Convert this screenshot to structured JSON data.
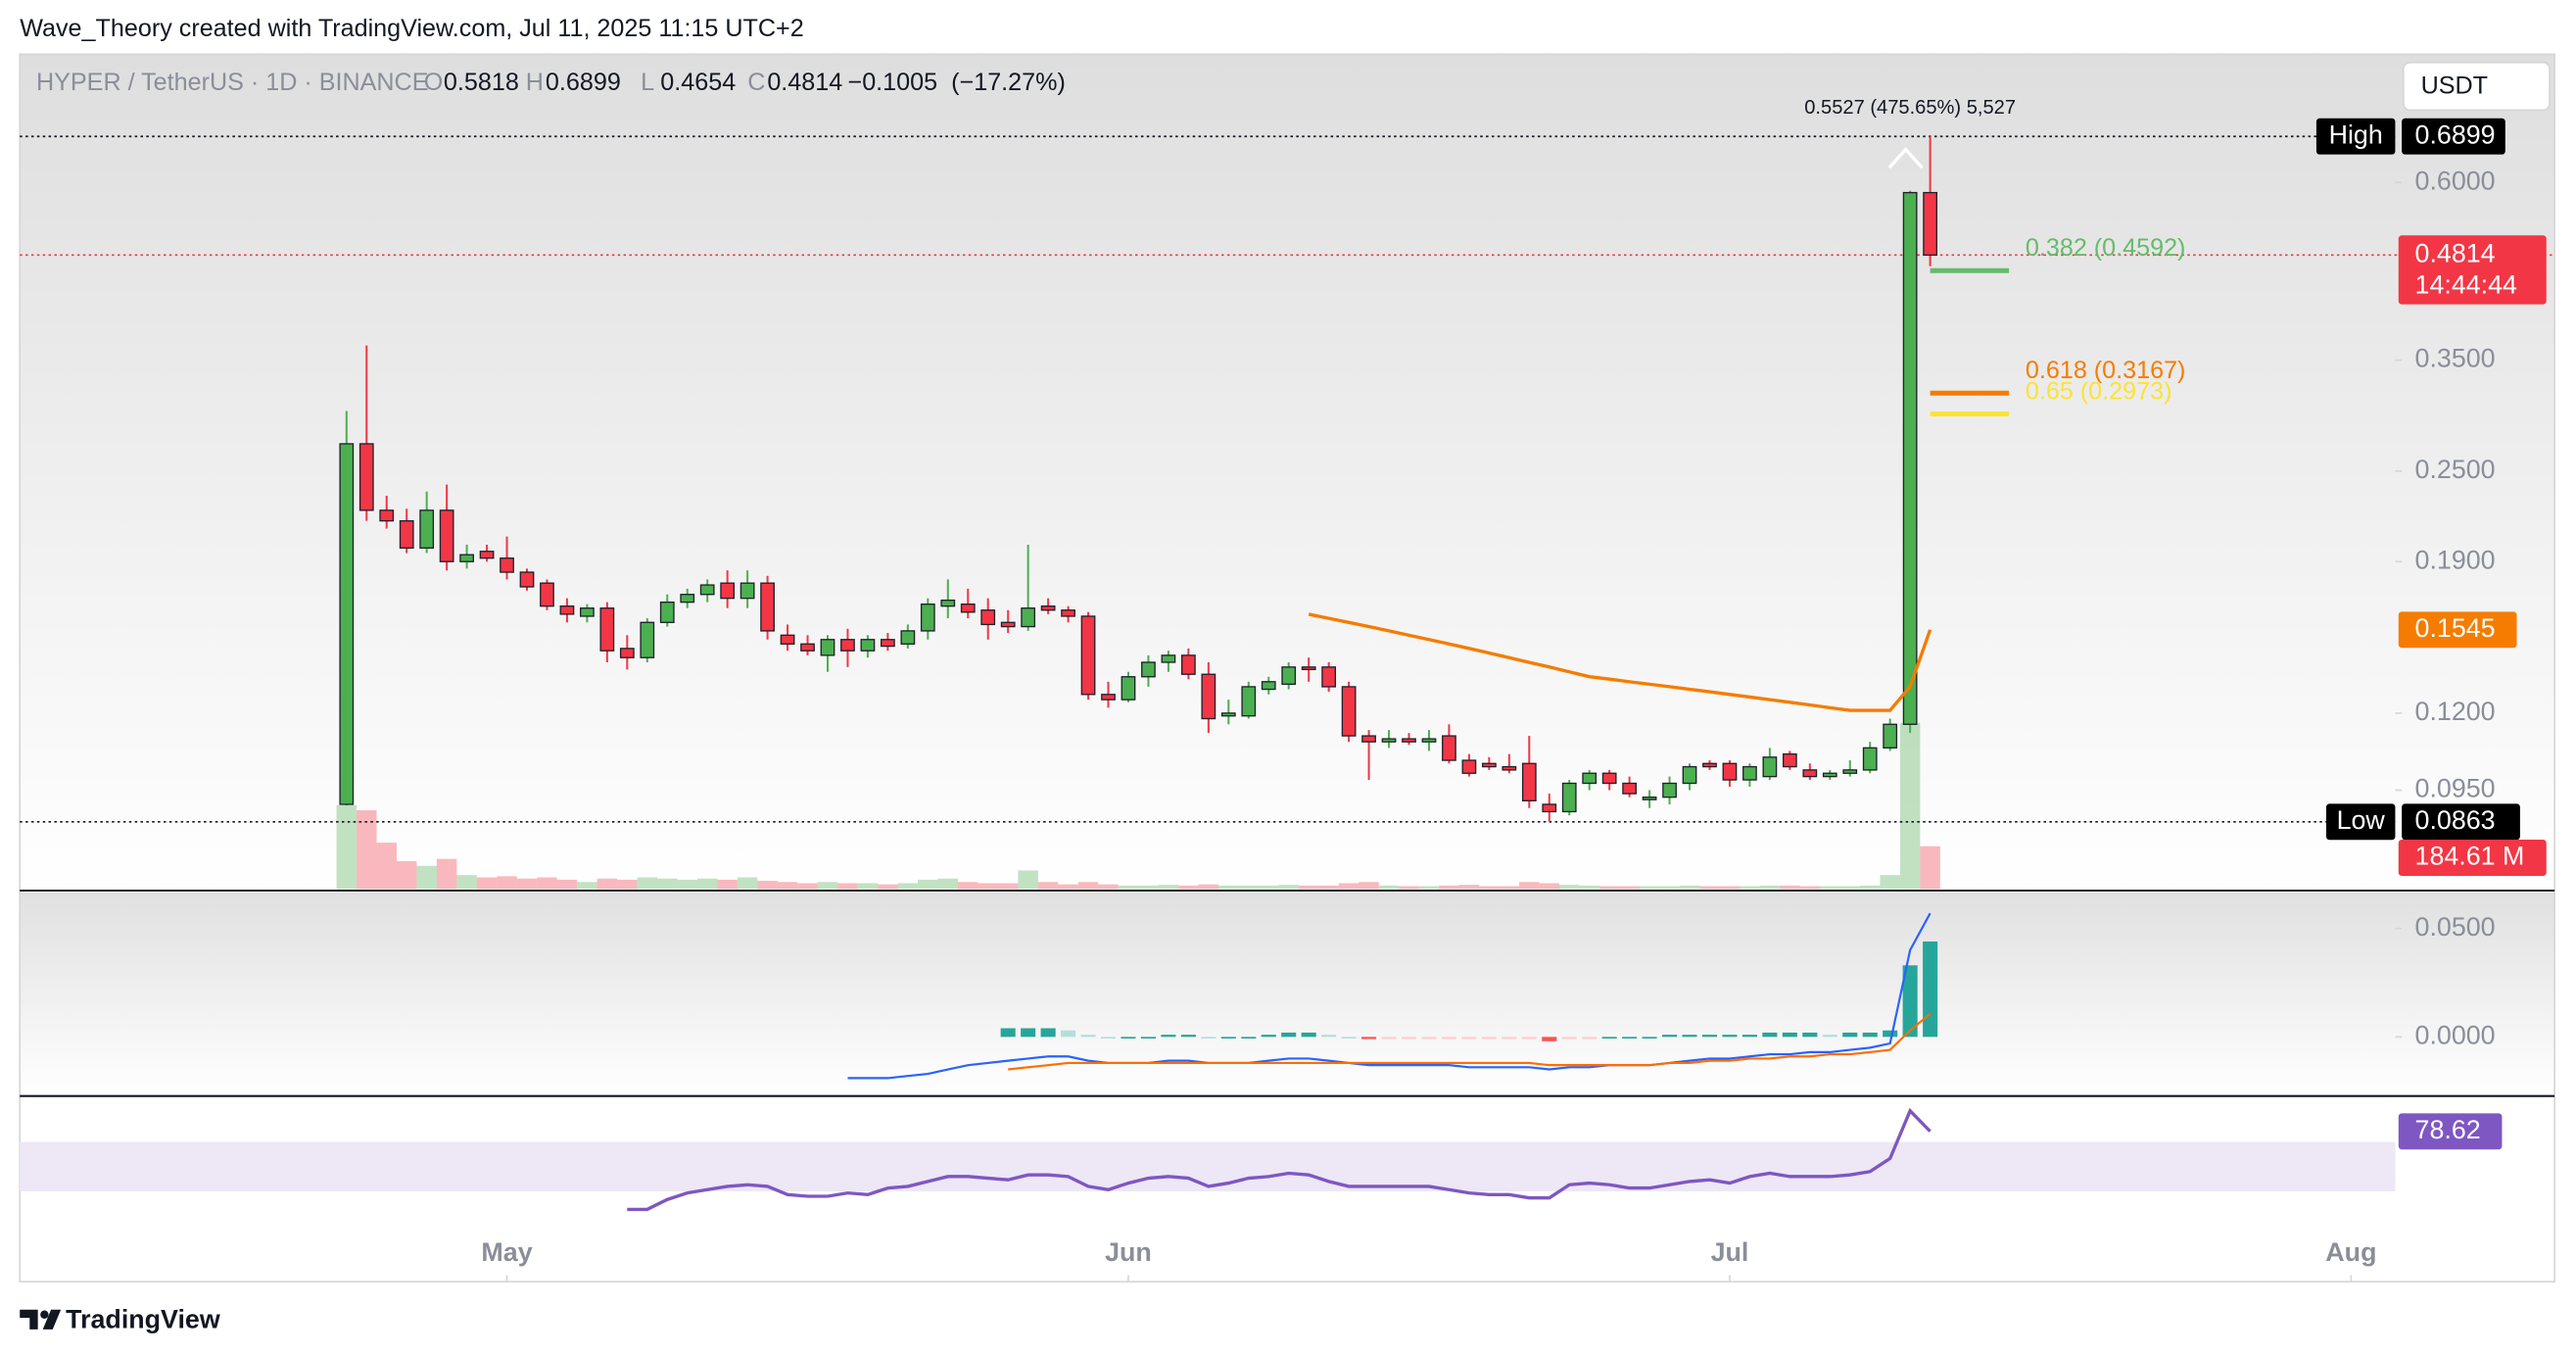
{
  "header": {
    "attribution": "Wave_Theory created with TradingView.com, Jul 11, 2025 11:15 UTC+2",
    "currency": "USDT",
    "brand": "TradingView"
  },
  "chart_data": [
    {
      "type": "candlestick",
      "title": "HYPER / TetherUS · 1D · BINANCE",
      "ohlc": [
        {
          "letter": "O",
          "value": 0.5818
        },
        {
          "letter": "H",
          "value": 0.6899
        },
        {
          "letter": "L",
          "value": 0.4654
        },
        {
          "letter": "C",
          "value": 0.4814
        }
      ],
      "change": {
        "value": -0.1005,
        "label": "−0.1005"
      },
      "change_pct": {
        "value": -17.27,
        "label": "(−17.27%)"
      },
      "log_scale": true,
      "ylim": [
        0.0704,
        0.8852
      ],
      "xlim": [
        -16.3,
        102.2
      ],
      "yticks": [
        {
          "value": 0.6,
          "label": "0.6000"
        },
        {
          "value": 0.35,
          "label": "0.3500"
        },
        {
          "value": 0.25,
          "label": "0.2500"
        },
        {
          "value": 0.19,
          "label": "0.1900"
        },
        {
          "value": 0.12,
          "label": "0.1200"
        },
        {
          "value": 0.095,
          "label": "0.0950"
        }
      ],
      "xticks": [
        {
          "value": 8,
          "label": "May"
        },
        {
          "value": 39,
          "label": "Jun"
        },
        {
          "value": 69,
          "label": "Jul"
        },
        {
          "value": 100,
          "label": "Aug"
        }
      ],
      "up_color": "#4caf50",
      "down_color": "#f23645",
      "open": [
        0.091,
        0.2716,
        0.222,
        0.215,
        0.198,
        0.222,
        0.19,
        0.196,
        0.192,
        0.184,
        0.178,
        0.166,
        0.161,
        0.165,
        0.146,
        0.142,
        0.158,
        0.168,
        0.172,
        0.178,
        0.17,
        0.178,
        0.152,
        0.148,
        0.143,
        0.15,
        0.145,
        0.15,
        0.148,
        0.154,
        0.166,
        0.167,
        0.164,
        0.158,
        0.156,
        0.166,
        0.164,
        0.161,
        0.127,
        0.125,
        0.134,
        0.14,
        0.143,
        0.135,
        0.119,
        0.119,
        0.129,
        0.131,
        0.138,
        0.138,
        0.13,
        0.112,
        0.11,
        0.111,
        0.11,
        0.112,
        0.104,
        0.103,
        0.102,
        0.103,
        0.091,
        0.089,
        0.097,
        0.1,
        0.097,
        0.093,
        0.093,
        0.097,
        0.103,
        0.103,
        0.098,
        0.099,
        0.106,
        0.101,
        0.099,
        0.1,
        0.101,
        0.108,
        0.116,
        0.5818
      ],
      "high": [
        0.3,
        0.366,
        0.232,
        0.223,
        0.235,
        0.24,
        0.2,
        0.2,
        0.205,
        0.186,
        0.18,
        0.17,
        0.167,
        0.168,
        0.152,
        0.16,
        0.172,
        0.175,
        0.18,
        0.185,
        0.185,
        0.182,
        0.157,
        0.152,
        0.152,
        0.155,
        0.152,
        0.153,
        0.157,
        0.17,
        0.18,
        0.175,
        0.17,
        0.164,
        0.2,
        0.17,
        0.166,
        0.163,
        0.132,
        0.136,
        0.143,
        0.145,
        0.146,
        0.14,
        0.125,
        0.132,
        0.134,
        0.14,
        0.142,
        0.14,
        0.132,
        0.114,
        0.114,
        0.113,
        0.114,
        0.116,
        0.106,
        0.105,
        0.106,
        0.112,
        0.094,
        0.098,
        0.101,
        0.101,
        0.099,
        0.095,
        0.099,
        0.103,
        0.104,
        0.104,
        0.103,
        0.108,
        0.107,
        0.103,
        0.101,
        0.104,
        0.11,
        0.118,
        0.585,
        0.6899
      ],
      "low": [
        0.0907,
        0.215,
        0.21,
        0.195,
        0.195,
        0.185,
        0.186,
        0.19,
        0.18,
        0.174,
        0.164,
        0.158,
        0.158,
        0.14,
        0.137,
        0.14,
        0.156,
        0.165,
        0.168,
        0.165,
        0.165,
        0.15,
        0.145,
        0.143,
        0.136,
        0.138,
        0.142,
        0.145,
        0.146,
        0.15,
        0.16,
        0.16,
        0.15,
        0.153,
        0.154,
        0.162,
        0.158,
        0.125,
        0.122,
        0.124,
        0.13,
        0.136,
        0.133,
        0.113,
        0.116,
        0.118,
        0.127,
        0.129,
        0.132,
        0.128,
        0.11,
        0.098,
        0.108,
        0.109,
        0.107,
        0.103,
        0.099,
        0.101,
        0.1,
        0.09,
        0.0863,
        0.088,
        0.095,
        0.095,
        0.093,
        0.09,
        0.091,
        0.095,
        0.101,
        0.096,
        0.096,
        0.098,
        0.101,
        0.098,
        0.098,
        0.099,
        0.1,
        0.107,
        0.113,
        0.4654
      ],
      "close": [
        0.2716,
        0.222,
        0.215,
        0.198,
        0.222,
        0.19,
        0.194,
        0.192,
        0.184,
        0.176,
        0.166,
        0.162,
        0.165,
        0.145,
        0.142,
        0.158,
        0.168,
        0.172,
        0.177,
        0.17,
        0.178,
        0.154,
        0.148,
        0.145,
        0.15,
        0.145,
        0.15,
        0.147,
        0.154,
        0.167,
        0.169,
        0.163,
        0.157,
        0.156,
        0.165,
        0.164,
        0.161,
        0.127,
        0.125,
        0.134,
        0.14,
        0.143,
        0.135,
        0.118,
        0.12,
        0.13,
        0.132,
        0.138,
        0.137,
        0.13,
        0.112,
        0.11,
        0.111,
        0.11,
        0.111,
        0.104,
        0.1,
        0.102,
        0.101,
        0.092,
        0.089,
        0.097,
        0.1,
        0.097,
        0.094,
        0.093,
        0.097,
        0.102,
        0.102,
        0.098,
        0.102,
        0.105,
        0.102,
        0.099,
        0.1,
        0.101,
        0.108,
        0.116,
        0.5818,
        0.4814
      ],
      "volume": {
        "values": [
          362,
          340,
          200,
          120,
          100,
          130,
          60,
          50,
          55,
          45,
          50,
          40,
          30,
          45,
          40,
          50,
          45,
          40,
          45,
          40,
          50,
          35,
          30,
          25,
          30,
          25,
          25,
          20,
          25,
          40,
          45,
          30,
          25,
          25,
          80,
          30,
          20,
          30,
          20,
          15,
          15,
          18,
          15,
          20,
          15,
          15,
          15,
          18,
          15,
          15,
          25,
          30,
          15,
          12,
          12,
          15,
          18,
          12,
          12,
          30,
          25,
          18,
          15,
          12,
          12,
          12,
          12,
          15,
          12,
          12,
          12,
          15,
          15,
          12,
          12,
          12,
          15,
          60,
          717,
          184.61
        ],
        "value_labels": [
          null,
          null,
          null,
          null,
          null,
          null,
          null,
          null,
          null,
          null,
          null,
          null,
          null,
          null,
          null,
          null,
          null,
          null,
          null,
          null,
          null,
          null,
          null,
          null,
          null,
          null,
          null,
          null,
          null,
          null,
          null,
          null,
          null,
          null,
          null,
          null,
          null,
          null,
          null,
          null,
          null,
          null,
          null,
          null,
          null,
          null,
          null,
          null,
          null,
          null,
          null,
          null,
          null,
          null,
          null,
          null,
          null,
          null,
          null,
          null,
          null,
          null,
          null,
          null,
          null,
          null,
          null,
          null,
          null,
          null,
          null,
          null,
          null,
          null,
          null,
          null,
          null,
          null,
          null,
          "184.61 M"
        ]
      },
      "ma": {
        "color": "#f57c00",
        "values": [
          null,
          null,
          null,
          null,
          null,
          null,
          null,
          null,
          null,
          null,
          null,
          null,
          null,
          null,
          null,
          null,
          null,
          null,
          null,
          null,
          null,
          null,
          null,
          null,
          null,
          null,
          null,
          null,
          null,
          null,
          null,
          null,
          null,
          null,
          null,
          null,
          null,
          null,
          null,
          null,
          null,
          null,
          null,
          null,
          null,
          null,
          null,
          null,
          0.162,
          0.16,
          0.158,
          0.156,
          0.154,
          0.152,
          0.15,
          0.148,
          0.146,
          0.144,
          0.142,
          0.14,
          0.138,
          0.136,
          0.134,
          0.133,
          0.132,
          0.131,
          0.13,
          0.129,
          0.128,
          0.127,
          0.126,
          0.125,
          0.124,
          0.123,
          0.122,
          0.121,
          0.121,
          0.121,
          0.13,
          0.1545
        ]
      },
      "high_marker": {
        "text": "High",
        "value": 0.6899
      },
      "low_marker": {
        "text": "Low",
        "value": 0.0863
      },
      "last_price": {
        "value": 0.4814,
        "countdown": "14:44:44"
      },
      "measure": "0.5527 (475.65%) 5,527",
      "fib_levels": [
        {
          "value": 0.4592,
          "label": "0.382 (0.4592)",
          "color": "#66bb6a"
        },
        {
          "value": 0.3167,
          "label": "0.618 (0.3167)",
          "color": "#f57c00"
        },
        {
          "value": 0.2973,
          "label": "0.65 (0.2973)",
          "color": "#fbe334"
        }
      ]
    },
    {
      "type": "macd",
      "ylim": [
        -0.0265,
        0.0667
      ],
      "yticks": [
        {
          "value": 0.05,
          "label": "0.0500"
        },
        {
          "value": 0,
          "label": "0.0000"
        }
      ],
      "series": [
        {
          "color": "#2962ff",
          "values": [
            null,
            null,
            null,
            null,
            null,
            null,
            null,
            null,
            null,
            null,
            null,
            null,
            null,
            null,
            null,
            null,
            null,
            null,
            null,
            null,
            null,
            null,
            null,
            null,
            null,
            -0.019,
            -0.019,
            -0.019,
            -0.018,
            -0.017,
            -0.015,
            -0.013,
            -0.012,
            -0.011,
            -0.01,
            -0.009,
            -0.009,
            -0.011,
            -0.012,
            -0.012,
            -0.012,
            -0.011,
            -0.011,
            -0.012,
            -0.012,
            -0.012,
            -0.011,
            -0.01,
            -0.01,
            -0.011,
            -0.012,
            -0.013,
            -0.013,
            -0.013,
            -0.013,
            -0.013,
            -0.014,
            -0.014,
            -0.014,
            -0.014,
            -0.015,
            -0.014,
            -0.014,
            -0.013,
            -0.013,
            -0.013,
            -0.012,
            -0.011,
            -0.01,
            -0.01,
            -0.009,
            -0.008,
            -0.008,
            -0.007,
            -0.007,
            -0.006,
            -0.005,
            -0.003,
            0.04,
            0.057
          ]
        },
        {
          "color": "#ff6d00",
          "values": [
            null,
            null,
            null,
            null,
            null,
            null,
            null,
            null,
            null,
            null,
            null,
            null,
            null,
            null,
            null,
            null,
            null,
            null,
            null,
            null,
            null,
            null,
            null,
            null,
            null,
            null,
            null,
            null,
            null,
            null,
            null,
            null,
            null,
            -0.015,
            -0.014,
            -0.013,
            -0.012,
            -0.012,
            -0.012,
            -0.012,
            -0.012,
            -0.012,
            -0.012,
            -0.012,
            -0.012,
            -0.012,
            -0.012,
            -0.012,
            -0.012,
            -0.012,
            -0.012,
            -0.012,
            -0.012,
            -0.012,
            -0.012,
            -0.012,
            -0.012,
            -0.012,
            -0.012,
            -0.012,
            -0.013,
            -0.013,
            -0.013,
            -0.013,
            -0.013,
            -0.013,
            -0.012,
            -0.012,
            -0.011,
            -0.011,
            -0.01,
            -0.01,
            -0.009,
            -0.009,
            -0.008,
            -0.008,
            -0.007,
            -0.006,
            0.003,
            0.0106
          ]
        }
      ],
      "histogram": {
        "colors": {
          "up_grow": "#26a69a",
          "up_fall": "#b2dfdb",
          "down_grow": "#ff5252",
          "down_fall": "#ffcdd2"
        },
        "values": [
          null,
          null,
          null,
          null,
          null,
          null,
          null,
          null,
          null,
          null,
          null,
          null,
          null,
          null,
          null,
          null,
          null,
          null,
          null,
          null,
          null,
          null,
          null,
          null,
          null,
          null,
          null,
          null,
          null,
          null,
          null,
          null,
          null,
          0.004,
          0.004,
          0.004,
          0.003,
          0.001,
          0,
          0,
          0,
          0.001,
          0.001,
          0,
          0,
          0,
          0.001,
          0.002,
          0.002,
          0.001,
          0,
          -0.001,
          -0.001,
          -0.001,
          -0.001,
          -0.001,
          -0.001,
          -0.001,
          -0.001,
          -0.001,
          -0.002,
          -0.001,
          -0.001,
          0,
          0,
          0,
          0.001,
          0.001,
          0.001,
          0.001,
          0.001,
          0.002,
          0.002,
          0.002,
          0.001,
          0.002,
          0.002,
          0.003,
          0.033,
          0.044
        ]
      }
    },
    {
      "type": "line",
      "ylim": [
        0,
        100
      ],
      "band": [
        30,
        70
      ],
      "band_color": "#ede7f6",
      "series": [
        {
          "color": "#7e57c2",
          "values": [
            null,
            null,
            null,
            null,
            null,
            null,
            null,
            null,
            null,
            null,
            null,
            null,
            null,
            null,
            15.3,
            15.3,
            23.3,
            28.7,
            31.3,
            34.0,
            35.3,
            34.0,
            27.3,
            26.0,
            26.0,
            28.7,
            27.3,
            32.7,
            34.0,
            38.0,
            42.0,
            42.0,
            40.7,
            39.3,
            43.3,
            43.3,
            42.0,
            34.0,
            31.3,
            36.7,
            40.7,
            42.0,
            40.7,
            34.0,
            36.7,
            40.7,
            42.0,
            44.7,
            43.3,
            38.0,
            34.0,
            34.0,
            34.0,
            34.0,
            34.0,
            31.3,
            28.7,
            27.3,
            27.3,
            24.7,
            24.7,
            35.3,
            36.7,
            35.3,
            32.7,
            32.7,
            35.3,
            38.0,
            39.3,
            36.7,
            42.0,
            44.7,
            42.0,
            42.0,
            42.0,
            43.3,
            46.0,
            56.7,
            95.3,
            78.62
          ]
        }
      ]
    }
  ]
}
